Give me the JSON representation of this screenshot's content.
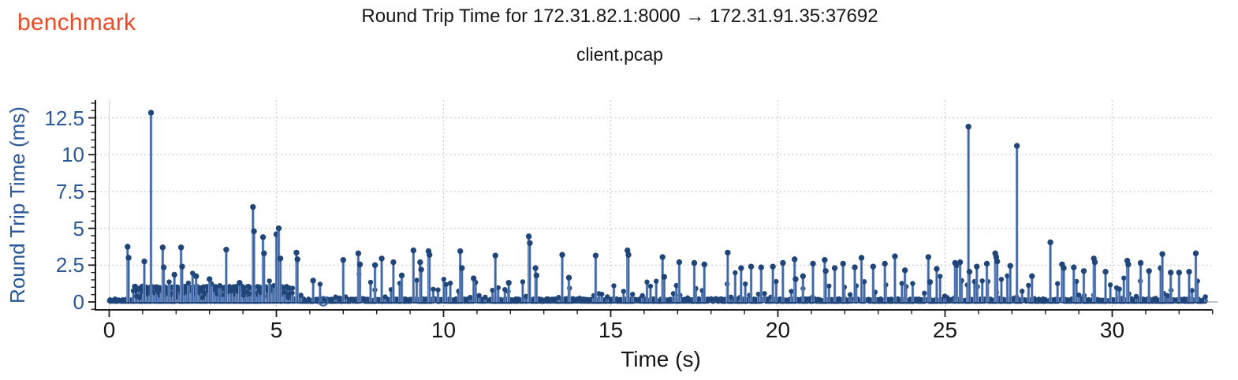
{
  "header": {
    "app_name": "benchmark",
    "title": "Round Trip Time for 172.31.82.1:8000 → 172.31.91.35:37692",
    "subtitle": "client.pcap"
  },
  "colors": {
    "accent": "#ec4b27",
    "axis_blue": "#2b5796",
    "stem": "#3d65a5",
    "stem_halo": "#8ba3cc",
    "marker": "#1f4579",
    "grid": "#c8c8c8",
    "zero_gridline": "#d9d9d9",
    "zero_baseline": "#b9c2cf",
    "spine": "#1a1a1a",
    "text_dark": "#161616"
  },
  "chart_data": {
    "type": "stem",
    "title": "Round Trip Time for 172.31.82.1:8000 → 172.31.91.35:37692",
    "subtitle": "client.pcap",
    "xlabel": "Time (s)",
    "ylabel": "Round Trip Time (ms)",
    "xlim": [
      -0.4,
      33.2
    ],
    "ylim": [
      -0.55,
      13.7
    ],
    "x_ticks": [
      0,
      5,
      10,
      15,
      20,
      25,
      30
    ],
    "x_tick_labels": [
      "0",
      "5",
      "10",
      "15",
      "20",
      "25",
      "30"
    ],
    "x_minor_step": 1,
    "x_minor_max": 33,
    "y_ticks": [
      0,
      2.5,
      5,
      7.5,
      10,
      12.5
    ],
    "y_tick_labels": [
      "0",
      "2.5",
      "5",
      "7.5",
      "10",
      "12.5"
    ],
    "y_minor_step": 0.5,
    "y_minor_min": -0.5,
    "y_minor_max": 13.5,
    "grid": "dotted at major ticks, light gray",
    "legend": "none",
    "marker": "filled circle",
    "t_data_end": 32.8,
    "max_point": [
      1.25,
      12.85
    ],
    "notable_spikes": [
      [
        0.55,
        3.75
      ],
      [
        0.58,
        3.0
      ],
      [
        1.05,
        2.75
      ],
      [
        1.25,
        12.85
      ],
      [
        1.6,
        3.7
      ],
      [
        1.63,
        2.35
      ],
      [
        1.95,
        1.85
      ],
      [
        2.15,
        3.7
      ],
      [
        2.18,
        2.4
      ],
      [
        2.6,
        1.75
      ],
      [
        3.0,
        1.55
      ],
      [
        3.5,
        3.55
      ],
      [
        3.9,
        1.3
      ],
      [
        4.3,
        6.45
      ],
      [
        4.33,
        4.8
      ],
      [
        4.6,
        4.4
      ],
      [
        4.63,
        3.3
      ],
      [
        5.0,
        4.6
      ],
      [
        5.07,
        5.0
      ],
      [
        5.12,
        2.95
      ],
      [
        5.6,
        3.35
      ],
      [
        5.63,
        2.9
      ],
      [
        6.1,
        1.45
      ],
      [
        7.0,
        2.85
      ],
      [
        7.45,
        3.3
      ],
      [
        7.5,
        2.55
      ],
      [
        7.95,
        2.5
      ],
      [
        8.15,
        2.95
      ],
      [
        8.5,
        2.7
      ],
      [
        8.75,
        1.8
      ],
      [
        9.1,
        3.5
      ],
      [
        9.3,
        2.7
      ],
      [
        9.33,
        2.2
      ],
      [
        9.55,
        3.45
      ],
      [
        9.58,
        3.2
      ],
      [
        10.5,
        3.45
      ],
      [
        10.55,
        2.3
      ],
      [
        10.9,
        1.6
      ],
      [
        11.55,
        3.15
      ],
      [
        11.95,
        1.3
      ],
      [
        12.55,
        4.45
      ],
      [
        12.58,
        4.0
      ],
      [
        12.75,
        2.3
      ],
      [
        12.78,
        1.8
      ],
      [
        13.55,
        3.2
      ],
      [
        13.75,
        1.65
      ],
      [
        14.55,
        3.15
      ],
      [
        15.5,
        3.5
      ],
      [
        15.53,
        3.2
      ],
      [
        16.55,
        3.05
      ],
      [
        16.6,
        1.7
      ],
      [
        17.05,
        2.7
      ],
      [
        17.5,
        2.65
      ],
      [
        17.8,
        2.55
      ],
      [
        18.5,
        3.35
      ],
      [
        18.9,
        2.3
      ],
      [
        19.2,
        2.4
      ],
      [
        19.5,
        2.35
      ],
      [
        19.85,
        2.4
      ],
      [
        20.15,
        2.65
      ],
      [
        20.5,
        2.9
      ],
      [
        20.53,
        1.55
      ],
      [
        20.75,
        1.75
      ],
      [
        21.05,
        2.6
      ],
      [
        21.4,
        2.85
      ],
      [
        21.43,
        2.1
      ],
      [
        21.7,
        2.3
      ],
      [
        21.95,
        2.6
      ],
      [
        22.3,
        2.35
      ],
      [
        22.5,
        3.0
      ],
      [
        22.85,
        2.4
      ],
      [
        23.2,
        2.6
      ],
      [
        23.5,
        3.1
      ],
      [
        23.8,
        2.15
      ],
      [
        24.5,
        3.05
      ],
      [
        24.55,
        1.35
      ],
      [
        24.75,
        2.25
      ],
      [
        25.3,
        2.65
      ],
      [
        25.35,
        2.5
      ],
      [
        25.45,
        2.7
      ],
      [
        25.7,
        11.9
      ],
      [
        25.73,
        2.05
      ],
      [
        25.95,
        2.4
      ],
      [
        26.25,
        2.6
      ],
      [
        26.5,
        3.3
      ],
      [
        26.53,
        3.05
      ],
      [
        26.56,
        2.75
      ],
      [
        26.95,
        2.45
      ],
      [
        27.15,
        10.6
      ],
      [
        27.6,
        1.75
      ],
      [
        28.15,
        4.05
      ],
      [
        28.5,
        2.55
      ],
      [
        28.55,
        2.3
      ],
      [
        28.85,
        2.35
      ],
      [
        29.15,
        2.1
      ],
      [
        29.45,
        2.95
      ],
      [
        29.48,
        2.7
      ],
      [
        29.8,
        2.05
      ],
      [
        30.45,
        2.8
      ],
      [
        30.48,
        2.55
      ],
      [
        30.85,
        2.65
      ],
      [
        31.1,
        2.1
      ],
      [
        31.45,
        2.3
      ],
      [
        31.5,
        3.25
      ],
      [
        31.75,
        2.0
      ],
      [
        32.0,
        2.0
      ],
      [
        32.3,
        2.05
      ],
      [
        32.5,
        3.3
      ]
    ],
    "baseline": {
      "description": "dense RTT floor of ~3000 packets",
      "t_start": 0,
      "t_end": 32.8,
      "v_min": 0.02,
      "v_max": 0.3
    },
    "shelf_band": {
      "description": "dense band of ~1 ms RTTs",
      "t_start": 0.75,
      "t_end": 5.5,
      "v_min": 0.45,
      "v_max": 1.08
    },
    "outlier_ring": {
      "t": 6.4,
      "v": 0.05
    },
    "generator": {
      "seed": 11,
      "base_step": 0.011,
      "mid_density": 0.5
    }
  }
}
